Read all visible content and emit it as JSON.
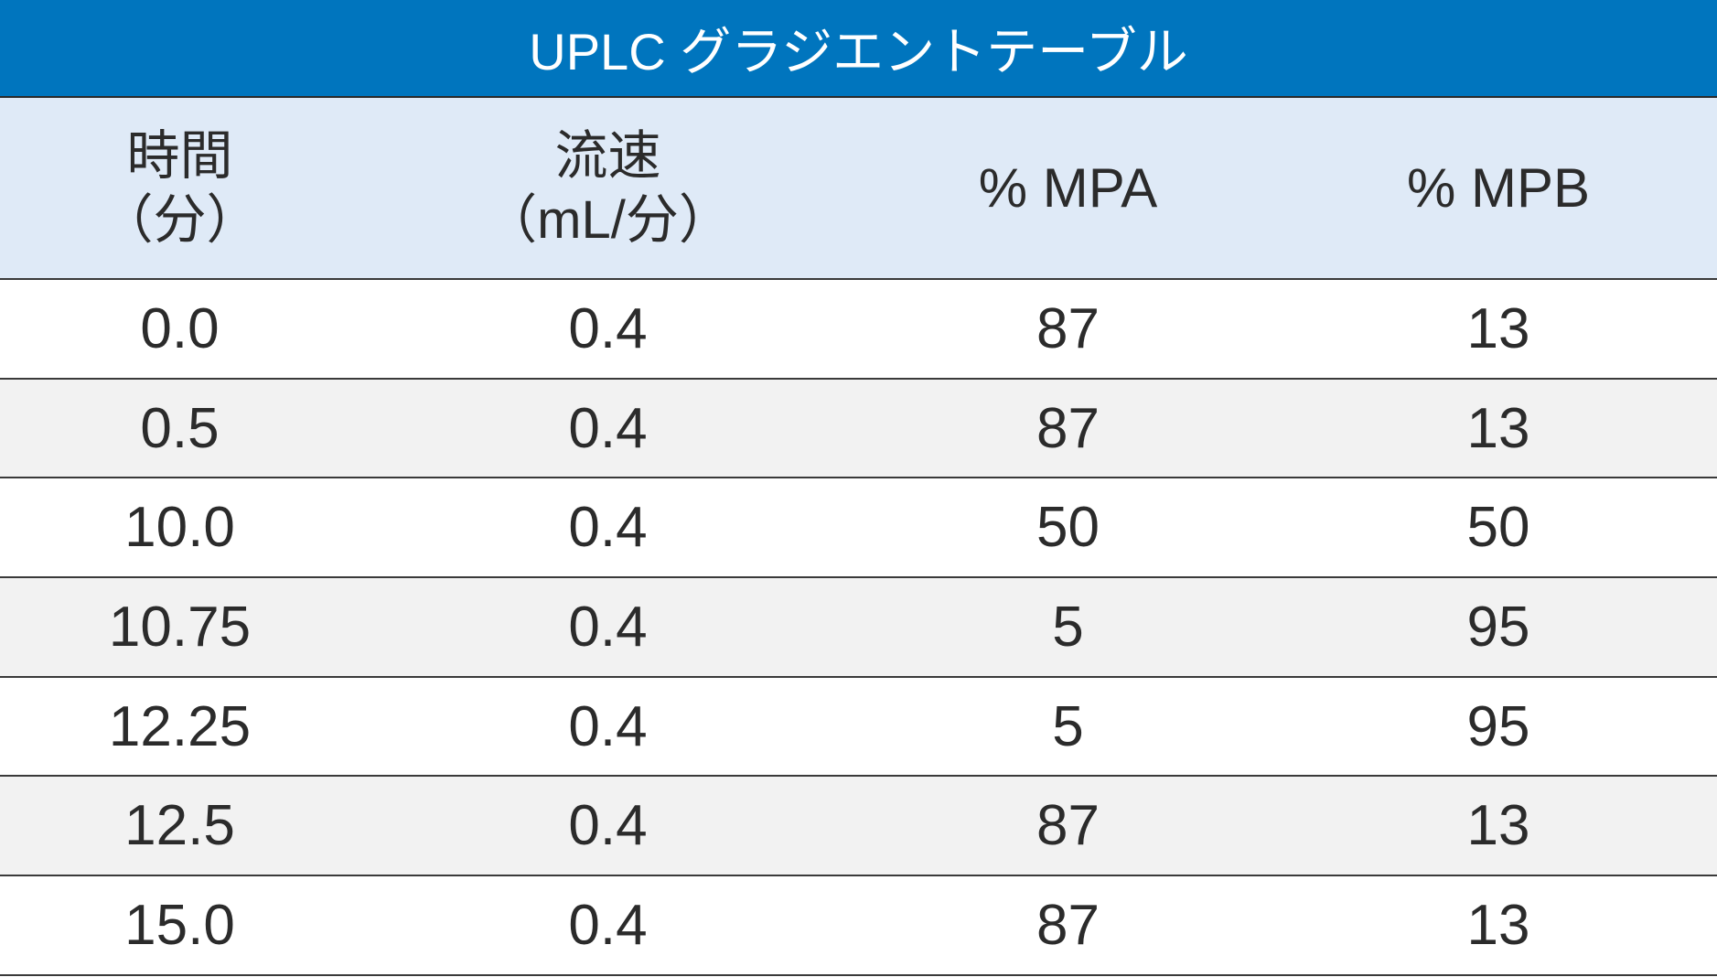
{
  "title": "UPLC グラジエントテーブル",
  "columns": [
    {
      "line1": "時間",
      "line2": "（分）"
    },
    {
      "line1": "流速",
      "line2": "（mL/分）"
    },
    {
      "line1": "% MPA",
      "line2": ""
    },
    {
      "line1": "% MPB",
      "line2": ""
    }
  ],
  "rows": [
    [
      "0.0",
      "0.4",
      "87",
      "13"
    ],
    [
      "0.5",
      "0.4",
      "87",
      "13"
    ],
    [
      "10.0",
      "0.4",
      "50",
      "50"
    ],
    [
      "10.75",
      "0.4",
      "5",
      "95"
    ],
    [
      "12.25",
      "0.4",
      "5",
      "95"
    ],
    [
      "12.5",
      "0.4",
      "87",
      "13"
    ],
    [
      "15.0",
      "0.4",
      "87",
      "13"
    ]
  ],
  "colors": {
    "title_bg": "#0075be",
    "header_bg": "#dfeaf7",
    "alt_row_bg": "#f2f2f2"
  }
}
